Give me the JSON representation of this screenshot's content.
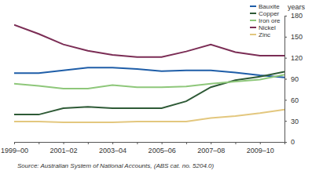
{
  "chart_data": {
    "type": "line",
    "y_label": "years",
    "annotations": [
      "Source: Australian System of National Accounts, (ABS cat. no. 5204.0)"
    ],
    "categories": [
      "1999–00",
      null,
      "2001–02",
      null,
      "2003–04",
      null,
      "2005–06",
      null,
      "2007–08",
      null,
      "2009–10",
      null
    ],
    "series": [
      {
        "name": "Bauxite",
        "color": "#1f5ea8",
        "values": [
          98,
          98,
          102,
          106,
          106,
          104,
          101,
          102,
          102,
          99,
          95,
          92
        ]
      },
      {
        "name": "Copper",
        "color": "#2e5a36",
        "values": [
          39,
          39,
          48,
          50,
          48,
          48,
          48,
          58,
          78,
          88,
          93,
          100
        ]
      },
      {
        "name": "Iron ore",
        "color": "#8ec77a",
        "values": [
          83,
          80,
          76,
          76,
          81,
          78,
          78,
          79,
          83,
          86,
          89,
          96
        ]
      },
      {
        "name": "Nickel",
        "color": "#7b2d55",
        "values": [
          167,
          154,
          139,
          130,
          124,
          121,
          121,
          129,
          139,
          128,
          123,
          123
        ]
      },
      {
        "name": "Zinc",
        "color": "#e3c77e",
        "values": [
          29,
          29,
          28,
          28,
          28,
          29,
          29,
          29,
          34,
          37,
          41,
          46
        ]
      }
    ],
    "ylim": [
      0,
      180
    ],
    "yticks": [
      0,
      30,
      60,
      90,
      120,
      150,
      180
    ],
    "grid": false,
    "legend": "top-right"
  }
}
